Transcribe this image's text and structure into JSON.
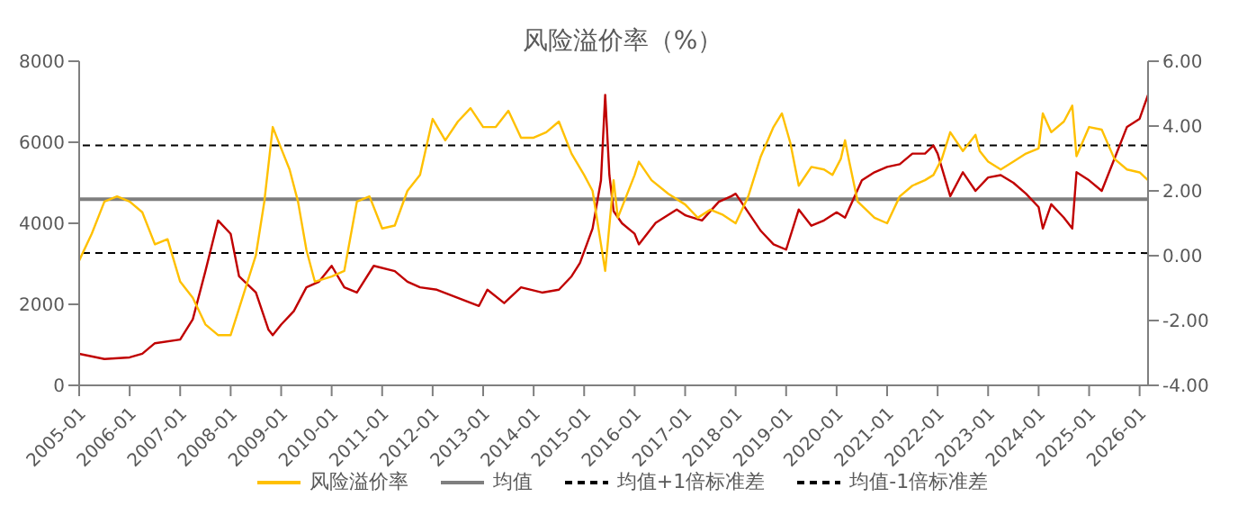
{
  "chart_data": {
    "type": "line",
    "title": "风险溢价率（%）",
    "legend": "bottom",
    "grid": false,
    "line_style": "solid",
    "marker": "none",
    "xlim": [
      "2005-01",
      "2026-03"
    ],
    "xticks": [
      "2005-01",
      "2006-01",
      "2007-01",
      "2008-01",
      "2009-01",
      "2010-01",
      "2011-01",
      "2012-01",
      "2013-01",
      "2014-01",
      "2015-01",
      "2016-01",
      "2017-01",
      "2018-01",
      "2019-01",
      "2020-01",
      "2021-01",
      "2022-01",
      "2023-01",
      "2024-01",
      "2025-01",
      "2026-01"
    ],
    "ylim": [
      0,
      8000
    ],
    "yticks": [
      0,
      2000,
      4000,
      6000,
      8000
    ],
    "y2lim": [
      -4,
      6
    ],
    "y2ticks": [
      {
        "value": -4,
        "label": "-4.00"
      },
      {
        "value": -2,
        "label": "-2.00"
      },
      {
        "value": 0,
        "label": "0.00"
      },
      {
        "value": 2,
        "label": "2.00"
      },
      {
        "value": 4,
        "label": "4.00"
      },
      {
        "value": 6,
        "label": "6.00"
      }
    ],
    "series": [
      {
        "color": "#c00000",
        "axis": "y",
        "x": [
          "2005-01",
          "2005-07",
          "2006-01",
          "2006-04",
          "2006-07",
          "2007-01",
          "2007-04",
          "2007-07",
          "2007-10",
          "2008-01",
          "2008-03",
          "2008-07",
          "2008-10",
          "2008-11",
          "2009-01",
          "2009-04",
          "2009-07",
          "2009-10",
          "2010-01",
          "2010-04",
          "2010-07",
          "2010-11",
          "2011-04",
          "2011-07",
          "2011-10",
          "2012-02",
          "2012-07",
          "2012-12",
          "2013-02",
          "2013-06",
          "2013-10",
          "2014-03",
          "2014-07",
          "2014-10",
          "2014-12",
          "2015-03",
          "2015-05",
          "2015-06",
          "2015-07",
          "2015-08",
          "2015-10",
          "2016-01",
          "2016-02",
          "2016-06",
          "2016-11",
          "2017-01",
          "2017-05",
          "2017-09",
          "2017-12",
          "2018-01",
          "2018-04",
          "2018-07",
          "2018-10",
          "2019-01",
          "2019-04",
          "2019-07",
          "2019-10",
          "2020-01",
          "2020-03",
          "2020-07",
          "2020-10",
          "2021-01",
          "2021-04",
          "2021-07",
          "2021-10",
          "2021-12",
          "2022-01",
          "2022-04",
          "2022-07",
          "2022-10",
          "2023-01",
          "2023-04",
          "2023-07",
          "2023-10",
          "2024-01",
          "2024-02",
          "2024-04",
          "2024-07",
          "2024-09",
          "2024-10",
          "2025-01",
          "2025-04",
          "2025-07",
          "2025-10",
          "2026-01",
          "2026-03"
        ],
        "values": [
          780,
          650,
          690,
          780,
          1040,
          1130,
          1630,
          2820,
          4070,
          3740,
          2690,
          2290,
          1370,
          1240,
          1500,
          1830,
          2420,
          2560,
          2950,
          2420,
          2290,
          2950,
          2820,
          2560,
          2420,
          2360,
          2160,
          1960,
          2360,
          2030,
          2420,
          2290,
          2360,
          2690,
          3020,
          3870,
          5060,
          7170,
          5190,
          4300,
          4000,
          3740,
          3480,
          4010,
          4340,
          4200,
          4070,
          4530,
          4670,
          4730,
          4270,
          3810,
          3480,
          3350,
          4340,
          3940,
          4070,
          4270,
          4140,
          5060,
          5260,
          5390,
          5460,
          5720,
          5720,
          5920,
          5720,
          4670,
          5260,
          4800,
          5130,
          5190,
          5000,
          4730,
          4400,
          3870,
          4470,
          4140,
          3870,
          5260,
          5060,
          4800,
          5590,
          6380,
          6580,
          7170
        ]
      },
      {
        "name": "风险溢价率",
        "color": "#ffc000",
        "axis": "y2",
        "x": [
          "2005-01",
          "2005-04",
          "2005-07",
          "2005-10",
          "2006-01",
          "2006-04",
          "2006-07",
          "2006-10",
          "2007-01",
          "2007-04",
          "2007-07",
          "2007-10",
          "2008-01",
          "2008-03",
          "2008-07",
          "2008-09",
          "2008-11",
          "2009-01",
          "2009-03",
          "2009-05",
          "2009-07",
          "2009-09",
          "2010-01",
          "2010-04",
          "2010-07",
          "2010-10",
          "2011-01",
          "2011-04",
          "2011-07",
          "2011-10",
          "2012-01",
          "2012-04",
          "2012-07",
          "2012-10",
          "2013-01",
          "2013-04",
          "2013-07",
          "2013-10",
          "2014-01",
          "2014-04",
          "2014-07",
          "2014-10",
          "2015-01",
          "2015-03",
          "2015-05",
          "2015-06",
          "2015-08",
          "2015-09",
          "2015-11",
          "2016-01",
          "2016-02",
          "2016-05",
          "2016-09",
          "2017-01",
          "2017-04",
          "2017-07",
          "2017-10",
          "2018-01",
          "2018-04",
          "2018-07",
          "2018-10",
          "2018-12",
          "2019-02",
          "2019-04",
          "2019-07",
          "2019-10",
          "2019-12",
          "2020-02",
          "2020-03",
          "2020-04",
          "2020-06",
          "2020-10",
          "2021-01",
          "2021-04",
          "2021-07",
          "2021-10",
          "2021-12",
          "2022-02",
          "2022-04",
          "2022-07",
          "2022-10",
          "2022-11",
          "2023-01",
          "2023-04",
          "2023-07",
          "2023-10",
          "2024-01",
          "2024-02",
          "2024-04",
          "2024-07",
          "2024-09",
          "2024-10",
          "2025-01",
          "2025-04",
          "2025-07",
          "2025-10",
          "2026-01",
          "2026-03"
        ],
        "values": [
          -0.15,
          0.68,
          1.67,
          1.83,
          1.67,
          1.34,
          0.35,
          0.51,
          -0.8,
          -1.3,
          -2.12,
          -2.45,
          -2.45,
          -1.63,
          0.02,
          1.67,
          3.97,
          3.31,
          2.66,
          1.67,
          0.18,
          -0.8,
          -0.64,
          -0.47,
          1.67,
          1.83,
          0.84,
          0.93,
          2.0,
          2.49,
          4.22,
          3.56,
          4.14,
          4.55,
          3.97,
          3.97,
          4.47,
          3.64,
          3.64,
          3.81,
          4.14,
          3.15,
          2.49,
          2.0,
          0.35,
          -0.47,
          2.33,
          1.17,
          1.83,
          2.49,
          2.9,
          2.33,
          1.91,
          1.58,
          1.17,
          1.42,
          1.26,
          1.0,
          1.83,
          3.07,
          3.97,
          4.39,
          3.48,
          2.16,
          2.74,
          2.66,
          2.49,
          2.99,
          3.56,
          2.9,
          1.67,
          1.17,
          1.0,
          1.83,
          2.16,
          2.33,
          2.49,
          2.99,
          3.81,
          3.23,
          3.73,
          3.23,
          2.9,
          2.66,
          2.9,
          3.15,
          3.31,
          4.39,
          3.81,
          4.14,
          4.63,
          3.07,
          3.97,
          3.89,
          2.99,
          2.66,
          2.57,
          2.33
        ]
      }
    ],
    "ref_lines": [
      {
        "axis": "y2",
        "value": 1.74,
        "label": "均值",
        "color": "#7f7f7f",
        "line_style": "solid"
      },
      {
        "axis": "y2",
        "value": 3.4,
        "label": "均值+1倍标准差",
        "color": "#000000",
        "line_style": "dashed"
      },
      {
        "axis": "y2",
        "value": 0.08,
        "label": "均值-1倍标准差",
        "color": "#000000",
        "line_style": "dashed"
      }
    ]
  }
}
